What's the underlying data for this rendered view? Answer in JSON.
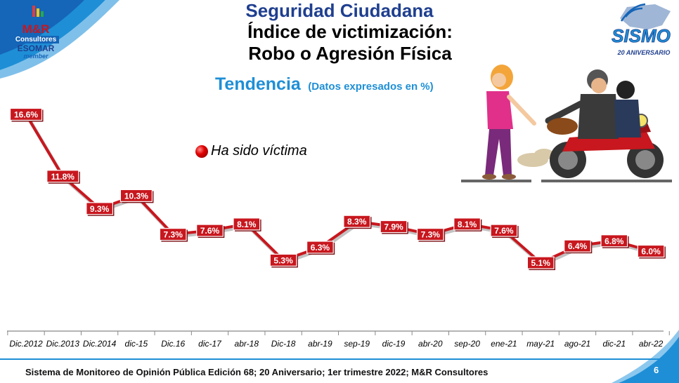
{
  "header": {
    "title_line1": "Seguridad Ciudadana",
    "title_line2": "Índice de victimización:",
    "title_line3": "Robo o Agresión Física",
    "subtitle": "Tendencia",
    "subtitle_note": "(Datos expresados en %)"
  },
  "logo_mr": {
    "line1": "M&R",
    "line2": "Consultores",
    "line3": "ESOMAR",
    "line4": "member"
  },
  "logo_sismo": {
    "name": "SISMO",
    "tagline": "20 ANIVERSARIO"
  },
  "footer": {
    "text": "Sistema de Monitoreo de Opinión Pública  Edición 68; 20 Aniversario;  1er trimestre 2022; M&R Consultores",
    "page": "6"
  },
  "colors": {
    "title_blue": "#1f3f8f",
    "subtitle_blue": "#1e8fd6",
    "line_red": "#c8171e",
    "label_bg": "#c8171e"
  },
  "chart_data": {
    "type": "line",
    "categories": [
      "Dic.2012",
      "Dic.2013",
      "Dic.2014",
      "dic-15",
      "Dic.16",
      "dic-17",
      "abr-18",
      "Dic-18",
      "abr-19",
      "sep-19",
      "dic-19",
      "abr-20",
      "sep-20",
      "ene-21",
      "may-21",
      "ago-21",
      "dic-21",
      "abr-22"
    ],
    "series": [
      {
        "name": "Ha sido víctima",
        "values": [
          16.6,
          11.8,
          9.3,
          10.3,
          7.3,
          7.6,
          8.1,
          5.3,
          6.3,
          8.3,
          7.9,
          7.3,
          8.1,
          7.6,
          5.1,
          6.4,
          6.8,
          6.0
        ],
        "labels": [
          "16.6%",
          "11.8%",
          "9.3%",
          "10.3%",
          "7.3%",
          "7.6%",
          "8.1%",
          "5.3%",
          "6.3%",
          "8.3%",
          "7.9%",
          "7.3%",
          "8.1%",
          "7.6%",
          "5.1%",
          "6.4%",
          "6.8%",
          "6.0%"
        ]
      }
    ],
    "legend_position": "top-left",
    "grid": false
  }
}
